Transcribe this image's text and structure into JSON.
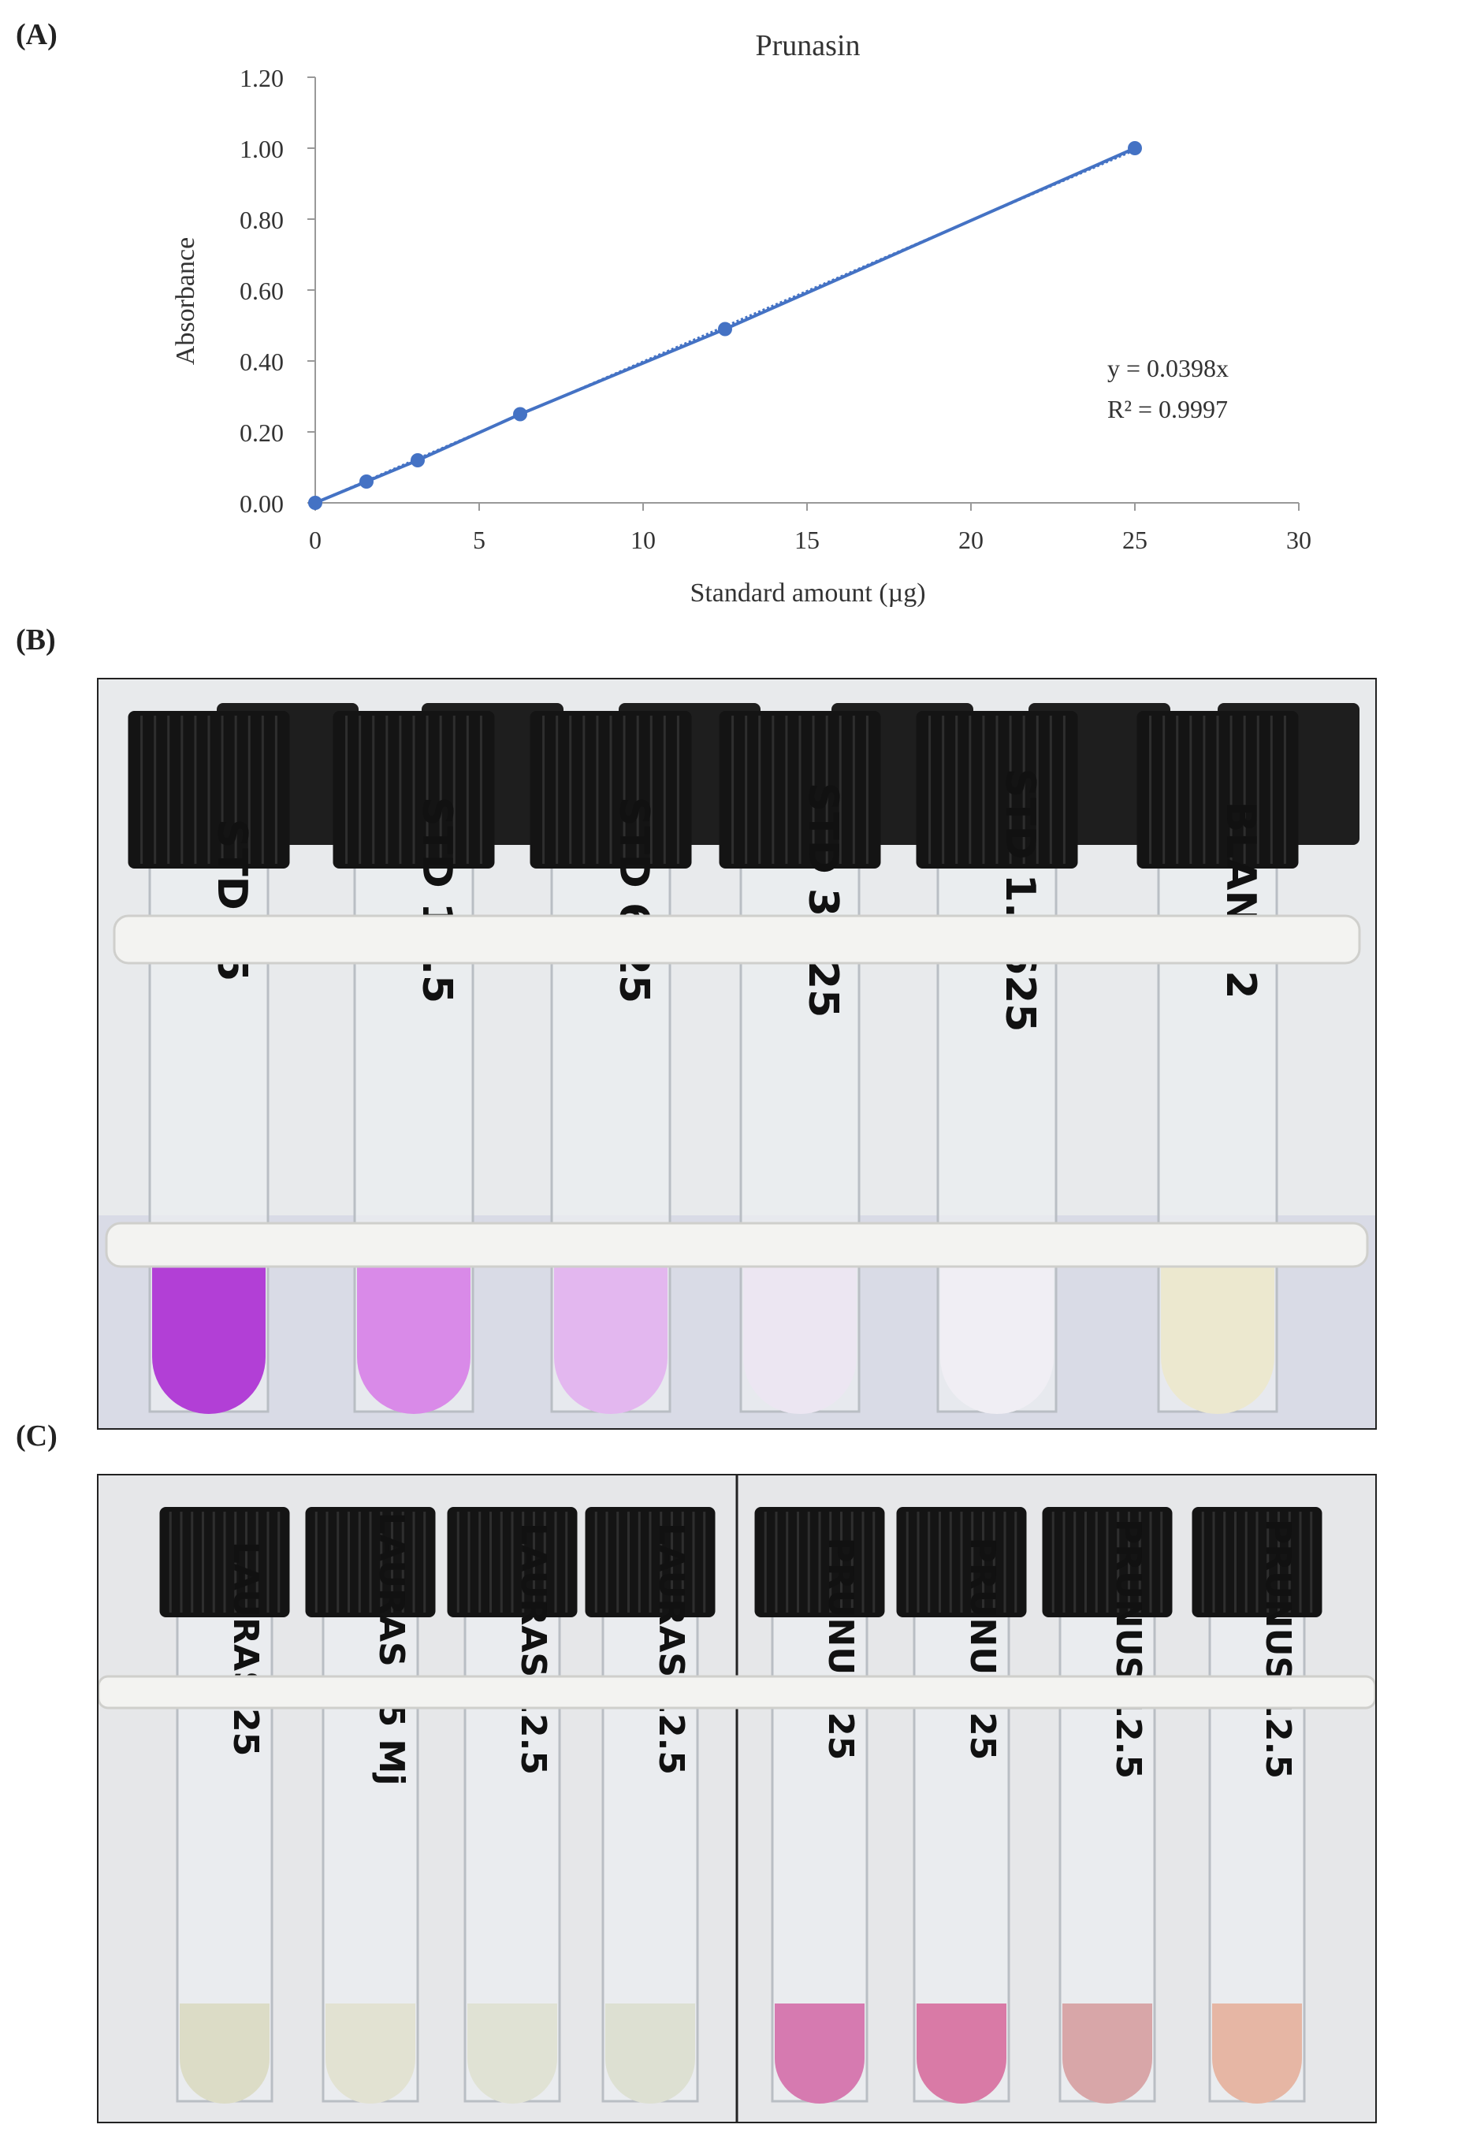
{
  "panels": {
    "a": "(A)",
    "b": "(B)",
    "c": "(C)"
  },
  "chart_data": {
    "type": "scatter",
    "title": "Prunasin",
    "xlabel": "Standard amount (µg)",
    "ylabel": "Absorbance",
    "xlim": [
      0,
      30
    ],
    "ylim": [
      0,
      1.2
    ],
    "x_ticks": [
      "0",
      "5",
      "10",
      "15",
      "20",
      "25",
      "30"
    ],
    "y_ticks": [
      "0.00",
      "0.20",
      "0.40",
      "0.60",
      "0.80",
      "1.00",
      "1.20"
    ],
    "series": [
      {
        "x": [
          0,
          1.5625,
          3.125,
          6.25,
          12.5,
          25
        ],
        "y": [
          0.0,
          0.06,
          0.12,
          0.25,
          0.49,
          1.0
        ]
      }
    ],
    "trendline": {
      "slope": 0.0398
    },
    "annotations": [
      "y = 0.0398x",
      "R² = 0.9997"
    ],
    "grid": false,
    "colors": {
      "series": "#4472C4"
    }
  },
  "photo_b": {
    "tube_labels": [
      "STD 25",
      "STD 12.5",
      "STD 6.25",
      "STD 3.125",
      "STD 1.5625",
      "BLANK 2"
    ],
    "liquid_colors": [
      "#b23fd6",
      "#d98ae8",
      "#e3b7ef",
      "#ece6f2",
      "#f0eef4",
      "#ece8cf"
    ]
  },
  "photo_c": {
    "tube_labels": [
      "LAURAS 25",
      "LAURAS 25 Mj",
      "LAURAS 12.5",
      "LAURAS 12.5",
      "PRUNUS 25",
      "PRUNUS 25",
      "PRUNUS 12.5",
      "PRUNUS 12.5"
    ],
    "liquid_colors": [
      "#dcdcc6",
      "#e2e2d2",
      "#e0e2d4",
      "#dde0d2",
      "#d67ab0",
      "#d97aa6",
      "#d8a6a8",
      "#e6b6a4"
    ]
  }
}
